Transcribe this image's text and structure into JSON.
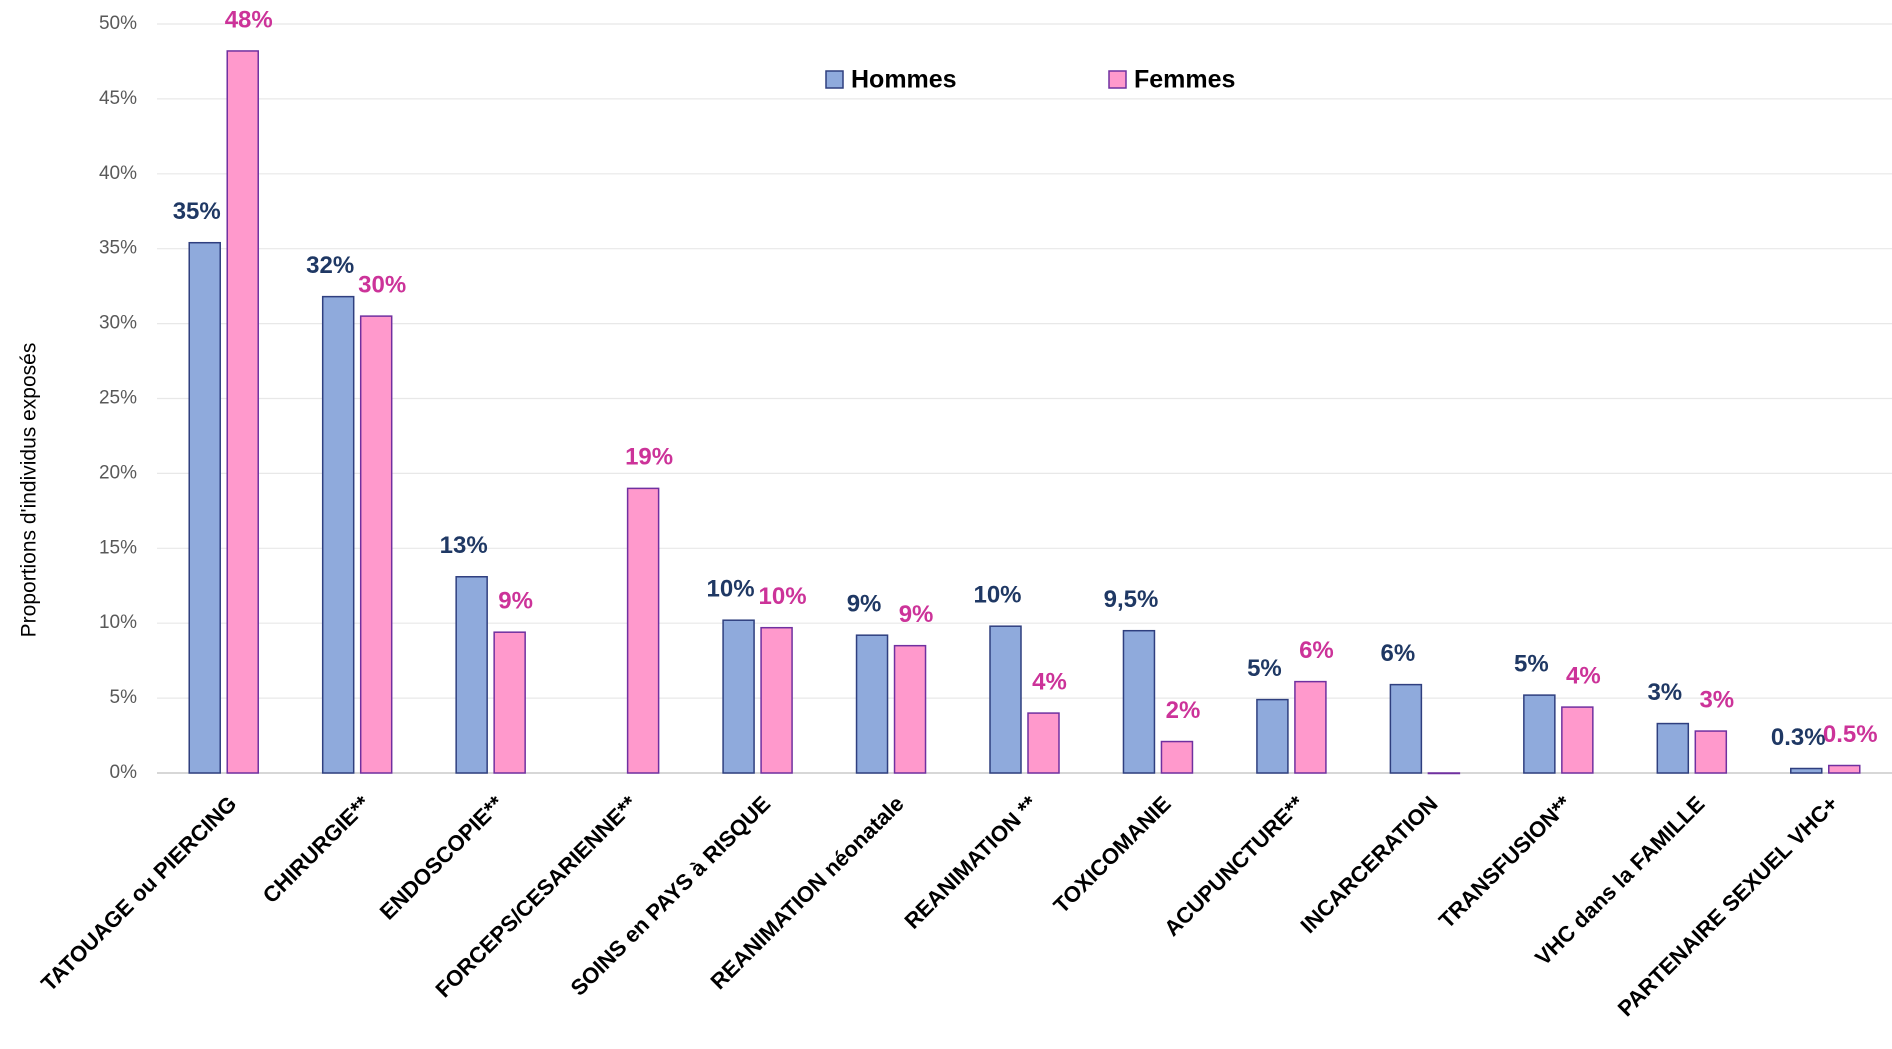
{
  "chart_data": {
    "type": "bar",
    "y_label": "Proportions d'individus exposés",
    "categories": [
      "TATOUAGE ou PIERCING",
      "CHIRURGIE**",
      "ENDOSCOPIE**",
      "FORCEPS/CESARIENNE**",
      "SOINS en PAYS à RISQUE",
      "REANIMATION néonatale",
      "REANIMATION **",
      "TOXICOMANIE",
      "ACUPUNCTURE**",
      "INCARCERATION",
      "TRANSFUSION**",
      "VHC dans la FAMILLE",
      "PARTENAIRE SEXUEL VHC+"
    ],
    "series": [
      {
        "name": "Hommes",
        "color": "#8faadc",
        "edge": "#2f3f7f",
        "label_color": "#1f3864",
        "values": [
          35.4,
          31.8,
          13.1,
          null,
          10.2,
          9.2,
          9.8,
          9.5,
          4.9,
          5.9,
          5.2,
          3.3,
          0.3
        ],
        "value_labels": [
          "35%",
          "32%",
          "13%",
          null,
          "10%",
          "9%",
          "10%",
          "9,5%",
          "5%",
          "6%",
          "5%",
          "3%",
          "0.3%"
        ]
      },
      {
        "name": "Femmes",
        "color": "#ff99cc",
        "edge": "#7030a0",
        "label_color": "#cc3399",
        "values": [
          48.2,
          30.5,
          9.4,
          19.0,
          9.7,
          8.5,
          4.0,
          2.1,
          6.1,
          0,
          4.4,
          2.8,
          0.5
        ],
        "value_labels": [
          "48%",
          "30%",
          "9%",
          "19%",
          "10%",
          "9%",
          "4%",
          "2%",
          "6%",
          null,
          "4%",
          "3%",
          "0.5%"
        ]
      }
    ],
    "ylim": [
      0,
      50
    ],
    "yticks": [
      {
        "value": 0,
        "label": "0%"
      },
      {
        "value": 5,
        "label": "5%"
      },
      {
        "value": 10,
        "label": "10%"
      },
      {
        "value": 15,
        "label": "15%"
      },
      {
        "value": 20,
        "label": "20%"
      },
      {
        "value": 25,
        "label": "25%"
      },
      {
        "value": 30,
        "label": "30%"
      },
      {
        "value": 35,
        "label": "35%"
      },
      {
        "value": 40,
        "label": "40%"
      },
      {
        "value": 45,
        "label": "45%"
      },
      {
        "value": 50,
        "label": "50%"
      }
    ],
    "grid": true
  }
}
